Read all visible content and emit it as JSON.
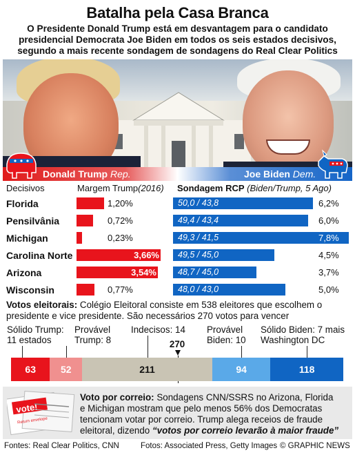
{
  "header": {
    "title": "Batalha pela Casa Branca",
    "subtitle_l1": "O Presidente Donald Trump está em desvantagem para o candidato",
    "subtitle_l2": "presidencial Democrata Joe Biden em todos os seis estados decisivos,",
    "subtitle_l3": "segundo a mais recente sondagem de sondagens do Real Clear Politics"
  },
  "candidates": {
    "trump": {
      "name": "Donald Trump",
      "party": "Rep.",
      "icon": "elephant-icon",
      "color": "#e8141c"
    },
    "biden": {
      "name": "Joe Biden",
      "party": "Dem.",
      "icon": "donkey-icon",
      "color": "#1065c3"
    }
  },
  "table": {
    "col1": "Decisivos",
    "col2": "Margem Trump",
    "col2_year": "(2016)",
    "col3": "Sondagem RCP",
    "col3_note": "(Biden/Trump, 5 Ago)"
  },
  "chart_data": {
    "type": "bar",
    "title": "Batalha pela Casa Branca",
    "categories": [
      "Florida",
      "Pensilvânia",
      "Michigan",
      "Carolina Norte",
      "Arizona",
      "Wisconsin"
    ],
    "series": [
      {
        "name": "Margem Trump (2016)",
        "values": [
          1.2,
          0.72,
          0.23,
          3.66,
          3.54,
          0.77
        ],
        "labels": [
          "1,20%",
          "0,72%",
          "0,23%",
          "3,66%",
          "3,54%",
          "0,77%"
        ]
      },
      {
        "name": "Sondagem RCP (Biden/Trump, 5 Ago)",
        "values": [
          6.2,
          6.0,
          7.8,
          4.5,
          3.7,
          5.0
        ],
        "labels": [
          "6,2%",
          "6,0%",
          "7,8%",
          "4,5%",
          "3,7%",
          "5,0%"
        ],
        "polls": [
          "50,0 / 43,8",
          "49,4 / 43,4",
          "49,3 / 41,5",
          "49,5 / 45,0",
          "48,7 / 45,0",
          "48,0 / 43,0"
        ]
      }
    ]
  },
  "electoral": {
    "heading": "Votos eleitorais:",
    "text_l1": " Colégio Eleitoral consiste em 538 eleitores que escolhem o",
    "text_l2": "presidente e vice presidente. São necessários 270 votos para vencer",
    "threshold": "270",
    "segments": [
      {
        "label_l1": "Sólido Trump:",
        "label_l2": "11 estados",
        "value": 63,
        "color": "#e8141c"
      },
      {
        "label_l1": "Provável",
        "label_l2": "Trump: 8",
        "value": 52,
        "color": "#f0908f"
      },
      {
        "label_l1": "Indecisos: 14",
        "label_l2": "",
        "value": 211,
        "color": "#c9c4b4"
      },
      {
        "label_l1": "Provável",
        "label_l2": "Biden: 10",
        "value": 94,
        "color": "#5aa9e8"
      },
      {
        "label_l1": "Sólido Biden: 7 mais",
        "label_l2": "Washington DC",
        "value": 118,
        "color": "#1065c3"
      }
    ]
  },
  "mail": {
    "heading": "Voto por correio:",
    "l1": " Sondagens CNN/SSRS no Arizona, Florida",
    "l2": "e Michigan mostram que pelo menos 56% dos Democratas",
    "l3": "tencionam votar por correio. Trump alega receios de fraude",
    "l4": "eleitoral, dizendo ",
    "quote": "“votos por correio levarão à maior fraude”",
    "ballot_text": "vote!",
    "ballot_sub": "Return envelope"
  },
  "footer": {
    "sources": "Fontes: Real Clear Politics, CNN",
    "photos": "Fotos: Associated Press, Getty Images",
    "credit": "© GRAPHIC NEWS"
  }
}
